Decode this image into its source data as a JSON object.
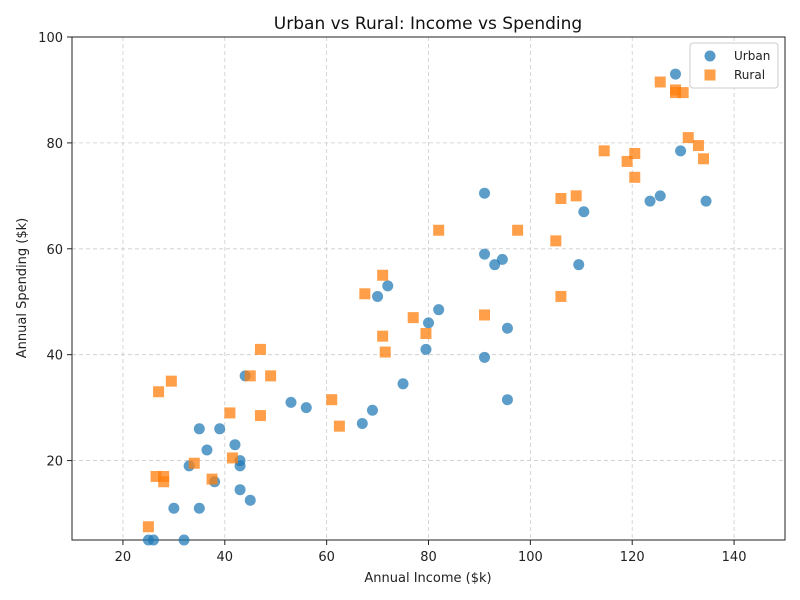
{
  "chart_data": {
    "type": "scatter",
    "title": "Urban vs Rural: Income vs Spending",
    "xlabel": "Annual Income ($k)",
    "ylabel": "Annual Spending ($k)",
    "xlim": [
      10,
      150
    ],
    "ylim": [
      5,
      100
    ],
    "xticks": [
      20,
      40,
      60,
      80,
      100,
      120,
      140
    ],
    "yticks": [
      20,
      40,
      60,
      80,
      100
    ],
    "grid": true,
    "legend_position": "top-right",
    "series": [
      {
        "name": "Urban",
        "marker": "circle",
        "color": "#1f77b4",
        "points": [
          [
            25,
            5
          ],
          [
            26,
            5
          ],
          [
            30,
            11
          ],
          [
            32,
            5
          ],
          [
            33,
            19
          ],
          [
            35,
            11
          ],
          [
            35,
            26
          ],
          [
            36.5,
            22
          ],
          [
            38,
            16
          ],
          [
            39,
            26
          ],
          [
            42,
            23
          ],
          [
            43,
            20
          ],
          [
            43,
            19
          ],
          [
            43,
            14.5
          ],
          [
            44,
            36
          ],
          [
            45,
            12.5
          ],
          [
            53,
            31
          ],
          [
            56,
            30
          ],
          [
            67,
            27
          ],
          [
            69,
            29.5
          ],
          [
            70,
            51
          ],
          [
            72,
            53
          ],
          [
            75,
            34.5
          ],
          [
            79.5,
            41
          ],
          [
            80,
            46
          ],
          [
            82,
            48.5
          ],
          [
            91,
            59
          ],
          [
            91,
            39.5
          ],
          [
            91,
            70.5
          ],
          [
            93,
            57
          ],
          [
            94.5,
            58
          ],
          [
            95.5,
            45
          ],
          [
            95.5,
            31.5
          ],
          [
            109.5,
            57
          ],
          [
            110.5,
            67
          ],
          [
            123.5,
            69
          ],
          [
            125.5,
            70
          ],
          [
            128.5,
            93
          ],
          [
            129.5,
            78.5
          ],
          [
            134.5,
            69
          ]
        ]
      },
      {
        "name": "Rural",
        "marker": "square",
        "color": "#ff7f0e",
        "points": [
          [
            25,
            7.5
          ],
          [
            26.5,
            17
          ],
          [
            27,
            33
          ],
          [
            28,
            17
          ],
          [
            28,
            16
          ],
          [
            29.5,
            35
          ],
          [
            34,
            19.5
          ],
          [
            37.5,
            16.5
          ],
          [
            41,
            29
          ],
          [
            41.5,
            20.5
          ],
          [
            45,
            36
          ],
          [
            47,
            41
          ],
          [
            47,
            28.5
          ],
          [
            49,
            36
          ],
          [
            61,
            31.5
          ],
          [
            62.5,
            26.5
          ],
          [
            67.5,
            51.5
          ],
          [
            71,
            55
          ],
          [
            71,
            43.5
          ],
          [
            71.5,
            40.5
          ],
          [
            77,
            47
          ],
          [
            79.5,
            44
          ],
          [
            82,
            63.5
          ],
          [
            91,
            47.5
          ],
          [
            97.5,
            63.5
          ],
          [
            105,
            61.5
          ],
          [
            106,
            51
          ],
          [
            106,
            69.5
          ],
          [
            109,
            70
          ],
          [
            114.5,
            78.5
          ],
          [
            119,
            76.5
          ],
          [
            120.5,
            78
          ],
          [
            120.5,
            73.5
          ],
          [
            125.5,
            91.5
          ],
          [
            128.5,
            90
          ],
          [
            128.5,
            89.5
          ],
          [
            130,
            89.5
          ],
          [
            131,
            81
          ],
          [
            133,
            79.5
          ],
          [
            134,
            77
          ]
        ]
      }
    ]
  }
}
